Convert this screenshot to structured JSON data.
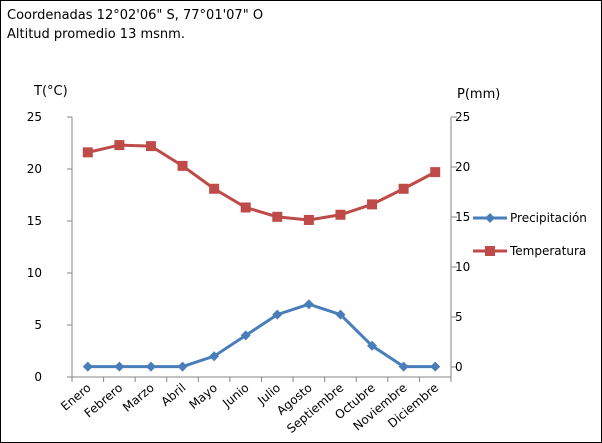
{
  "header": {
    "line1": "Coordenadas 12°02'06\" S, 77°01'07\" O",
    "line2": "Altitud promedio 13 msnm."
  },
  "chart_data": {
    "type": "line",
    "categories": [
      "Enero",
      "Febrero",
      "Marzo",
      "Abril",
      "Mayo",
      "Junio",
      "Julio",
      "Agosto",
      "Septiembre",
      "Octubre",
      "Noviembre",
      "Diciembre"
    ],
    "y_left": {
      "label": "T(°C)",
      "min": 0,
      "max": 25,
      "ticks": [
        0,
        5,
        10,
        15,
        20,
        25
      ]
    },
    "y_right": {
      "label": "P(mm)",
      "min": -1,
      "max": 25,
      "ticks": [
        0,
        5,
        10,
        15,
        20,
        25
      ]
    },
    "series": [
      {
        "name": "Precipitación",
        "axis": "left",
        "color": "#4a7ebb",
        "marker": "diamond",
        "values": [
          1,
          1,
          1,
          1,
          2,
          4,
          6,
          7,
          6,
          3,
          1,
          1
        ]
      },
      {
        "name": "Temperatura",
        "axis": "left",
        "color": "#be4b48",
        "marker": "square",
        "values": [
          21.6,
          22.3,
          22.2,
          20.3,
          18.1,
          16.3,
          15.4,
          15.1,
          15.6,
          16.6,
          18.1,
          19.7
        ]
      }
    ],
    "legend_position": "right",
    "grid": false
  }
}
